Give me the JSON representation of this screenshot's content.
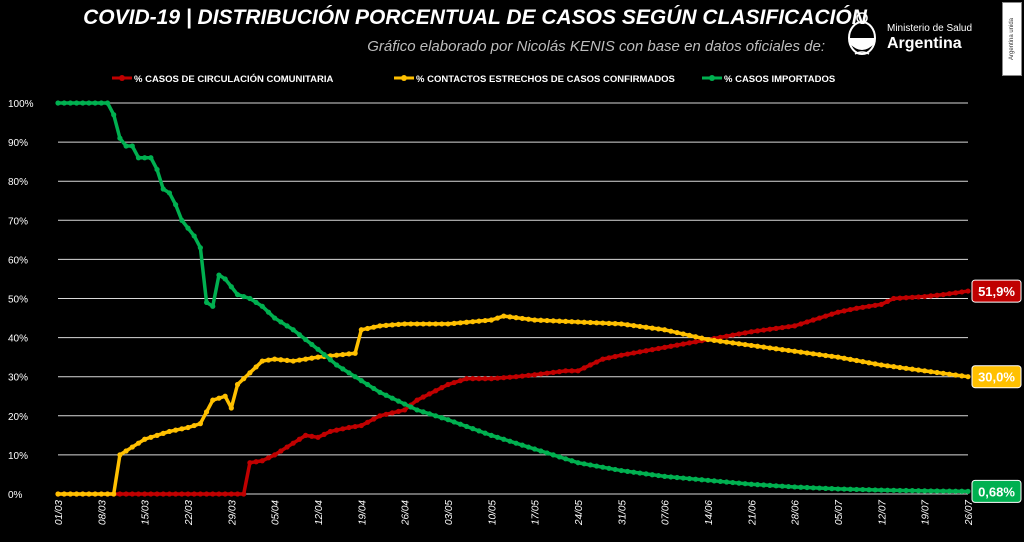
{
  "title": "COVID-19  |  DISTRIBUCIÓN PORCENTUAL DE CASOS SEGÚN CLASIFICACIÓN",
  "subtitle": "Gráfico elaborado por Nicolás KENIS con base en datos oficiales de:",
  "logo": {
    "ministry": "Ministerio de Salud",
    "country": "Argentina",
    "side_badge": "Argentina unida"
  },
  "colors": {
    "background": "#000000",
    "red": "#c00000",
    "yellow": "#ffc000",
    "green": "#00b050",
    "grid": "#d9d9d9",
    "text": "#ffffff"
  },
  "chart_data": {
    "type": "line",
    "title": "COVID-19  |  DISTRIBUCIÓN PORCENTUAL DE CASOS SEGÚN CLASIFICACIÓN",
    "xlabel": "",
    "ylabel": "",
    "ylim": [
      0,
      100
    ],
    "yticks": [
      "0%",
      "10%",
      "20%",
      "30%",
      "40%",
      "50%",
      "60%",
      "70%",
      "80%",
      "90%",
      "100%"
    ],
    "xticks": [
      "01/03",
      "08/03",
      "15/03",
      "22/03",
      "29/03",
      "05/04",
      "12/04",
      "19/04",
      "26/04",
      "03/05",
      "10/05",
      "17/05",
      "24/05",
      "31/05",
      "07/06",
      "14/06",
      "21/06",
      "28/06",
      "05/07",
      "12/07",
      "19/07",
      "26/07"
    ],
    "grid": true,
    "legend_position": "top",
    "series": [
      {
        "name": "% CASOS DE CIRCULACIÓN COMUNITARIA",
        "color": "#c00000",
        "end_label": "51,9%",
        "points": [
          [
            "01/03",
            0
          ],
          [
            "08/03",
            0
          ],
          [
            "15/03",
            0
          ],
          [
            "22/03",
            0
          ],
          [
            "29/03",
            0
          ],
          [
            "31/03",
            0
          ],
          [
            "01/04",
            8
          ],
          [
            "03/04",
            8.5
          ],
          [
            "05/04",
            10
          ],
          [
            "08/04",
            13
          ],
          [
            "10/04",
            15
          ],
          [
            "12/04",
            14.5
          ],
          [
            "14/04",
            16
          ],
          [
            "17/04",
            17
          ],
          [
            "19/04",
            17.5
          ],
          [
            "22/04",
            20
          ],
          [
            "26/04",
            21.5
          ],
          [
            "28/04",
            24
          ],
          [
            "03/05",
            28
          ],
          [
            "06/05",
            29.5
          ],
          [
            "10/05",
            29.5
          ],
          [
            "14/05",
            30
          ],
          [
            "17/05",
            30.5
          ],
          [
            "22/05",
            31.5
          ],
          [
            "24/05",
            31.5
          ],
          [
            "28/05",
            34.5
          ],
          [
            "31/05",
            35.5
          ],
          [
            "07/06",
            37.5
          ],
          [
            "14/06",
            39.5
          ],
          [
            "21/06",
            41.5
          ],
          [
            "28/06",
            43
          ],
          [
            "05/07",
            46.5
          ],
          [
            "08/07",
            47.5
          ],
          [
            "12/07",
            48.5
          ],
          [
            "14/07",
            50
          ],
          [
            "19/07",
            50.5
          ],
          [
            "22/07",
            51
          ],
          [
            "26/07",
            51.9
          ]
        ]
      },
      {
        "name": "% CONTACTOS ESTRECHOS DE CASOS CONFIRMADOS",
        "color": "#ffc000",
        "end_label": "30,0%",
        "points": [
          [
            "01/03",
            0
          ],
          [
            "08/03",
            0
          ],
          [
            "10/03",
            0
          ],
          [
            "11/03",
            10
          ],
          [
            "13/03",
            12
          ],
          [
            "15/03",
            14
          ],
          [
            "17/03",
            15
          ],
          [
            "19/03",
            16
          ],
          [
            "22/03",
            17
          ],
          [
            "24/03",
            18
          ],
          [
            "26/03",
            24
          ],
          [
            "28/03",
            25
          ],
          [
            "29/03",
            22
          ],
          [
            "30/03",
            28
          ],
          [
            "01/04",
            31
          ],
          [
            "03/04",
            34
          ],
          [
            "05/04",
            34.5
          ],
          [
            "08/04",
            34
          ],
          [
            "12/04",
            35
          ],
          [
            "15/04",
            35.5
          ],
          [
            "18/04",
            36
          ],
          [
            "19/04",
            42
          ],
          [
            "22/04",
            43
          ],
          [
            "26/04",
            43.5
          ],
          [
            "03/05",
            43.5
          ],
          [
            "10/05",
            44.5
          ],
          [
            "12/05",
            45.5
          ],
          [
            "17/05",
            44.5
          ],
          [
            "24/05",
            44
          ],
          [
            "31/05",
            43.5
          ],
          [
            "07/06",
            42
          ],
          [
            "14/06",
            39.5
          ],
          [
            "21/06",
            38
          ],
          [
            "28/06",
            36.5
          ],
          [
            "05/07",
            35
          ],
          [
            "12/07",
            33
          ],
          [
            "19/07",
            31.5
          ],
          [
            "26/07",
            30
          ]
        ]
      },
      {
        "name": "% CASOS IMPORTADOS",
        "color": "#00b050",
        "end_label": "0,68%",
        "points": [
          [
            "01/03",
            100
          ],
          [
            "09/03",
            100
          ],
          [
            "10/03",
            97
          ],
          [
            "11/03",
            91
          ],
          [
            "12/03",
            89
          ],
          [
            "13/03",
            89
          ],
          [
            "14/03",
            86
          ],
          [
            "16/03",
            86
          ],
          [
            "17/03",
            83
          ],
          [
            "18/03",
            78
          ],
          [
            "19/03",
            77
          ],
          [
            "20/03",
            74
          ],
          [
            "21/03",
            70
          ],
          [
            "22/03",
            68
          ],
          [
            "23/03",
            66
          ],
          [
            "24/03",
            63
          ],
          [
            "25/03",
            49
          ],
          [
            "26/03",
            48
          ],
          [
            "27/03",
            56
          ],
          [
            "28/03",
            55
          ],
          [
            "29/03",
            53
          ],
          [
            "30/03",
            51
          ],
          [
            "01/04",
            50
          ],
          [
            "03/04",
            48
          ],
          [
            "05/04",
            45
          ],
          [
            "08/04",
            42
          ],
          [
            "12/04",
            37
          ],
          [
            "15/04",
            33
          ],
          [
            "19/04",
            29
          ],
          [
            "22/04",
            26
          ],
          [
            "26/04",
            23
          ],
          [
            "28/04",
            21.5
          ],
          [
            "03/05",
            19
          ],
          [
            "10/05",
            15
          ],
          [
            "17/05",
            11.5
          ],
          [
            "24/05",
            8
          ],
          [
            "31/05",
            6
          ],
          [
            "07/06",
            4.5
          ],
          [
            "14/06",
            3.5
          ],
          [
            "21/06",
            2.5
          ],
          [
            "28/06",
            1.8
          ],
          [
            "05/07",
            1.3
          ],
          [
            "12/07",
            1
          ],
          [
            "19/07",
            0.8
          ],
          [
            "26/07",
            0.68
          ]
        ]
      }
    ]
  }
}
